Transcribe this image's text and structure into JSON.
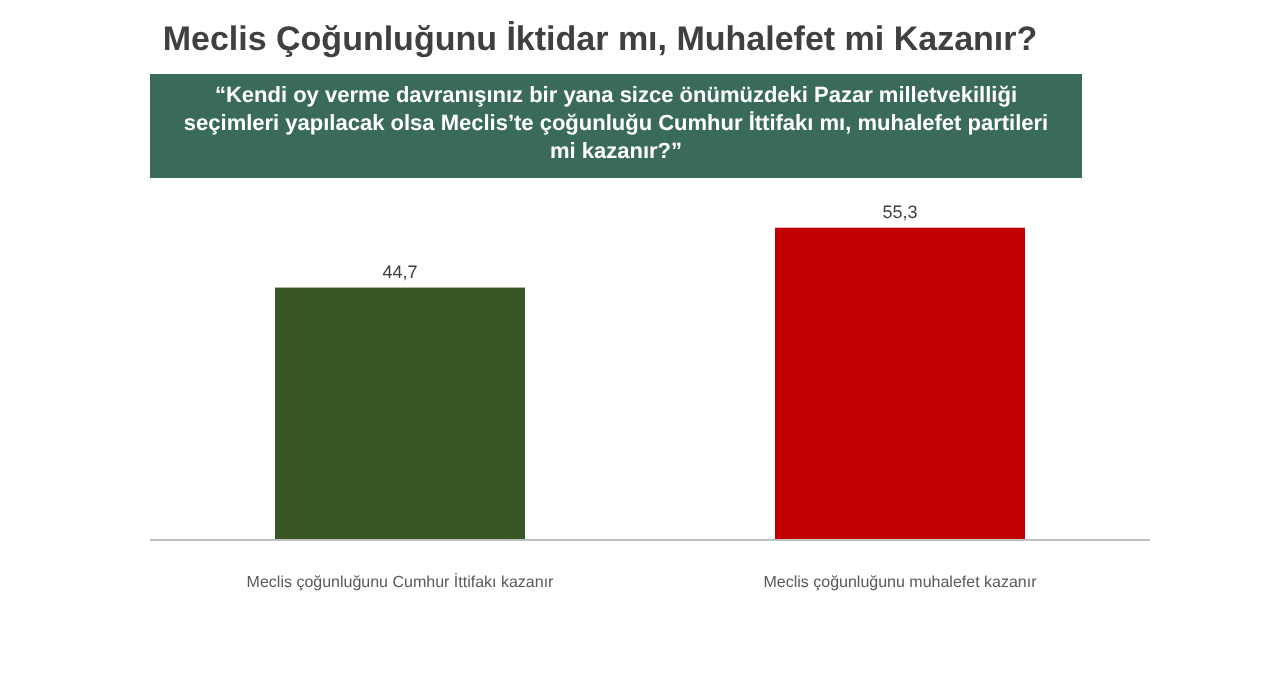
{
  "chart_data": {
    "type": "bar",
    "title": "Meclis Çoğunluğunu İktidar mı, Muhalefet mi Kazanır?",
    "subtitle": "“Kendi oy verme davranışınız bir yana sizce önümüzdeki Pazar milletvekilliği seçimleri yapılacak olsa Meclis’te çoğunluğu Cumhur İttifakı mı, muhalefet partileri mi kazanır?”",
    "categories": [
      "Meclis çoğunluğunu Cumhur İttifakı kazanır",
      "Meclis çoğunluğunu muhalefet kazanır"
    ],
    "values": [
      44.7,
      55.3
    ],
    "colors": [
      "#375623",
      "#c00000"
    ],
    "value_labels": [
      "44,7",
      "55,3"
    ]
  }
}
